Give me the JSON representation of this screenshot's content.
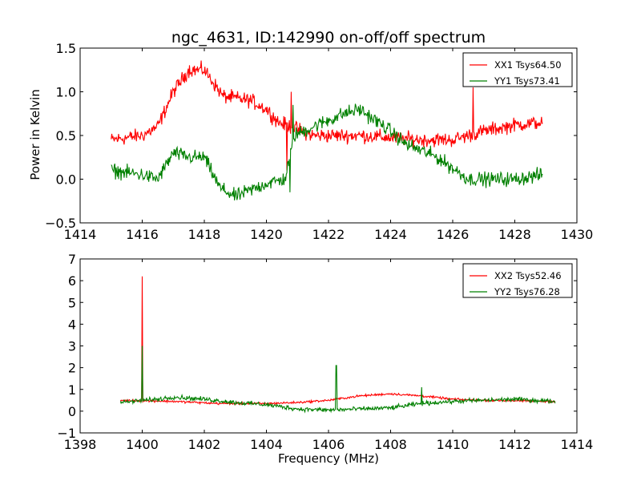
{
  "chart_data": [
    {
      "type": "line",
      "title": "ngc_4631, ID:142990 on-off/off spectrum",
      "xlabel": "",
      "ylabel": "Power in Kelvin",
      "xlim": [
        1414,
        1430
      ],
      "ylim": [
        -0.5,
        1.5
      ],
      "xticks": [
        "1414",
        "1416",
        "1418",
        "1420",
        "1422",
        "1424",
        "1426",
        "1428",
        "1430"
      ],
      "yticks": [
        "−0.5",
        "0.0",
        "0.5",
        "1.0",
        "1.5"
      ],
      "legend_position": "upper-right",
      "series": [
        {
          "name": "XX1 Tsys64.50",
          "color": "#ff0000",
          "x_range": [
            1415.0,
            1428.9
          ],
          "noise": 0.08,
          "baseline": [
            [
              1415.0,
              0.45
            ],
            [
              1416.0,
              0.5
            ],
            [
              1416.5,
              0.6
            ],
            [
              1417.0,
              1.0
            ],
            [
              1417.5,
              1.25
            ],
            [
              1418.0,
              1.25
            ],
            [
              1418.3,
              1.1
            ],
            [
              1418.6,
              0.95
            ],
            [
              1419.5,
              0.9
            ],
            [
              1420.0,
              0.8
            ],
            [
              1420.4,
              0.65
            ],
            [
              1420.8,
              0.6
            ],
            [
              1421.5,
              0.5
            ],
            [
              1423.0,
              0.5
            ],
            [
              1425.0,
              0.45
            ],
            [
              1426.0,
              0.45
            ],
            [
              1427.0,
              0.55
            ],
            [
              1428.0,
              0.62
            ],
            [
              1428.9,
              0.65
            ]
          ],
          "spikes": [
            {
              "x": 1420.8,
              "y": 1.0
            },
            {
              "x": 1420.65,
              "y": 0.1
            },
            {
              "x": 1426.65,
              "y": 1.05
            }
          ]
        },
        {
          "name": "YY1 Tsys73.41",
          "color": "#008000",
          "x_range": [
            1415.0,
            1428.9
          ],
          "noise": 0.08,
          "baseline": [
            [
              1415.0,
              0.1
            ],
            [
              1416.0,
              0.05
            ],
            [
              1416.5,
              0.0
            ],
            [
              1417.0,
              0.3
            ],
            [
              1417.5,
              0.25
            ],
            [
              1418.0,
              0.25
            ],
            [
              1418.5,
              -0.1
            ],
            [
              1419.0,
              -0.2
            ],
            [
              1420.0,
              -0.05
            ],
            [
              1420.6,
              0.0
            ],
            [
              1420.9,
              0.5
            ],
            [
              1421.5,
              0.6
            ],
            [
              1422.5,
              0.75
            ],
            [
              1423.0,
              0.8
            ],
            [
              1424.0,
              0.55
            ],
            [
              1424.5,
              0.4
            ],
            [
              1425.5,
              0.25
            ],
            [
              1426.5,
              0.0
            ],
            [
              1428.0,
              0.0
            ],
            [
              1428.9,
              0.05
            ]
          ],
          "spikes": [
            {
              "x": 1420.75,
              "y": -0.15
            },
            {
              "x": 1420.85,
              "y": 0.85
            }
          ]
        }
      ]
    },
    {
      "type": "line",
      "title": "",
      "xlabel": "Frequency (MHz)",
      "ylabel": "",
      "xlim": [
        1398,
        1414
      ],
      "ylim": [
        -1,
        7
      ],
      "xticks": [
        "1398",
        "1400",
        "1402",
        "1404",
        "1406",
        "1408",
        "1410",
        "1412",
        "1414"
      ],
      "yticks": [
        "−1",
        "0",
        "1",
        "2",
        "3",
        "4",
        "5",
        "6",
        "7"
      ],
      "legend_position": "upper-right",
      "series": [
        {
          "name": "XX2 Tsys52.46",
          "color": "#ff0000",
          "x_range": [
            1399.3,
            1413.3
          ],
          "noise": 0.05,
          "baseline": [
            [
              1399.3,
              0.5
            ],
            [
              1401.0,
              0.45
            ],
            [
              1402.5,
              0.35
            ],
            [
              1404.0,
              0.35
            ],
            [
              1405.0,
              0.4
            ],
            [
              1406.0,
              0.5
            ],
            [
              1407.0,
              0.7
            ],
            [
              1408.0,
              0.8
            ],
            [
              1409.0,
              0.7
            ],
            [
              1410.0,
              0.55
            ],
            [
              1411.0,
              0.5
            ],
            [
              1413.3,
              0.45
            ]
          ],
          "spikes": [
            {
              "x": 1400.0,
              "y": 6.2
            }
          ]
        },
        {
          "name": "YY2 Tsys76.28",
          "color": "#008000",
          "x_range": [
            1399.3,
            1413.3
          ],
          "noise": 0.1,
          "baseline": [
            [
              1399.3,
              0.4
            ],
            [
              1400.5,
              0.55
            ],
            [
              1401.0,
              0.65
            ],
            [
              1402.0,
              0.55
            ],
            [
              1403.0,
              0.4
            ],
            [
              1404.0,
              0.3
            ],
            [
              1405.0,
              0.1
            ],
            [
              1406.0,
              0.05
            ],
            [
              1407.0,
              0.1
            ],
            [
              1408.0,
              0.15
            ],
            [
              1409.0,
              0.35
            ],
            [
              1410.0,
              0.45
            ],
            [
              1411.0,
              0.5
            ],
            [
              1412.0,
              0.55
            ],
            [
              1413.3,
              0.45
            ]
          ],
          "spikes": [
            {
              "x": 1400.0,
              "y": 3.0
            },
            {
              "x": 1406.25,
              "y": 2.1
            },
            {
              "x": 1409.0,
              "y": 1.1
            }
          ]
        }
      ]
    }
  ]
}
